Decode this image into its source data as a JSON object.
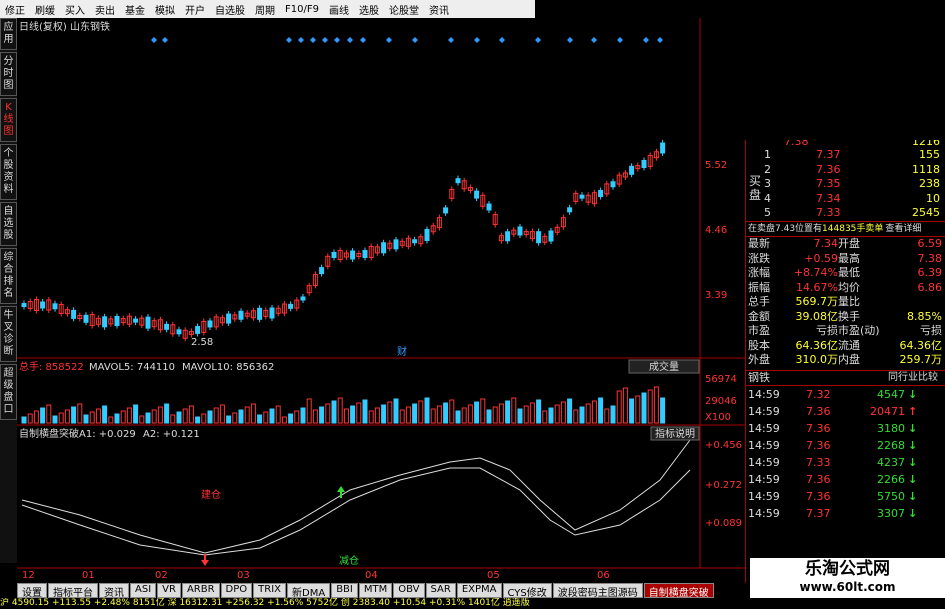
{
  "toolbar": [
    "修正",
    "刷缓",
    "买入",
    "卖出",
    "基金",
    "模拟",
    "开户",
    "自选股",
    "周期",
    "F10/F9",
    "画线",
    "选股",
    "论股堂",
    "资讯"
  ],
  "sidebar": [
    "应用",
    "分时图",
    "K线图",
    "个股资料",
    "自选股",
    "综合排名",
    "牛叉诊断",
    "超级盘口"
  ],
  "chart_header": "日线(复权) 山东钢铁",
  "price_axis": [
    "5.52",
    "4.46",
    "3.39"
  ],
  "low_label": "2.58",
  "event_mark": "财",
  "volume": {
    "total": "总手: 858522",
    "mavol5": "MAVOL5: 744110",
    "mavol10": "MAVOL10: 856362",
    "button": "成交量",
    "axis": [
      "56974",
      "29046",
      "X100"
    ]
  },
  "indicator": {
    "name": "自制横盘突破",
    "a1": "A1: +0.029",
    "a2": "A2: +0.121",
    "button": "指标说明",
    "axis": [
      "+0.456",
      "+0.272",
      "+0.089"
    ],
    "buy": "建仓",
    "sell": "减仓"
  },
  "x_axis": [
    "12",
    "01",
    "02",
    "03",
    "04",
    "05",
    "06"
  ],
  "tabs": [
    "设置",
    "指标平台",
    "资讯",
    "ASI",
    "VR",
    "ARBR",
    "DPO",
    "TRIX",
    "新DMA",
    "BBI",
    "MTM",
    "OBV",
    "SAR",
    "EXPMA",
    "CYS修改",
    "波段密码主图源码",
    "自制横盘突破"
  ],
  "status": "沪 4590.15 +113.55 +2.48% 8151亿 深 16312.31 +256.32 +1.56% 5752亿 创 2383.40 +10.54 +0.31% 1401亿 逍遥版",
  "order_book": {
    "label": "买盘",
    "top": [
      "7.38",
      "1216"
    ],
    "rows": [
      [
        "1",
        "7.37",
        "155"
      ],
      [
        "2",
        "7.36",
        "1118"
      ],
      [
        "3",
        "7.35",
        "238"
      ],
      [
        "4",
        "7.34",
        "10"
      ],
      [
        "5",
        "7.33",
        "2545"
      ]
    ],
    "notice": "在卖盘7.43位置有",
    "notice2": "144835手卖单",
    "detail": "查看详细"
  },
  "quote": [
    [
      "最新",
      "7.34",
      "开盘",
      "6.59"
    ],
    [
      "涨跌",
      "+0.59",
      "最高",
      "7.38"
    ],
    [
      "涨幅",
      "+8.74%",
      "最低",
      "6.39"
    ],
    [
      "振幅",
      "14.67%",
      "均价",
      "6.86"
    ],
    [
      "总手",
      "569.7万",
      "量比",
      ""
    ],
    [
      "金额",
      "39.08亿",
      "换手",
      "8.85%"
    ],
    [
      "市盈",
      "亏损",
      "市盈(动)",
      "亏损"
    ],
    [
      "股本",
      "64.36亿",
      "流通",
      "64.36亿"
    ],
    [
      "外盘",
      "310.0万",
      "内盘",
      "259.7万"
    ]
  ],
  "industry_tabs": [
    "钢铁",
    "同行业比较"
  ],
  "trades": [
    [
      "14:59",
      "7.32",
      "4547",
      "↓"
    ],
    [
      "14:59",
      "7.36",
      "20471",
      "↑"
    ],
    [
      "14:59",
      "7.36",
      "3180",
      "↓"
    ],
    [
      "14:59",
      "7.36",
      "2268",
      "↓"
    ],
    [
      "14:59",
      "7.33",
      "4237",
      "↓"
    ],
    [
      "14:59",
      "7.36",
      "2266",
      "↓"
    ],
    [
      "14:59",
      "7.36",
      "5750",
      "↓"
    ],
    [
      "14:59",
      "7.37",
      "3307",
      "↓"
    ]
  ],
  "watermark": {
    "title": "乐淘公式网",
    "url": "www.60lt.com"
  }
}
